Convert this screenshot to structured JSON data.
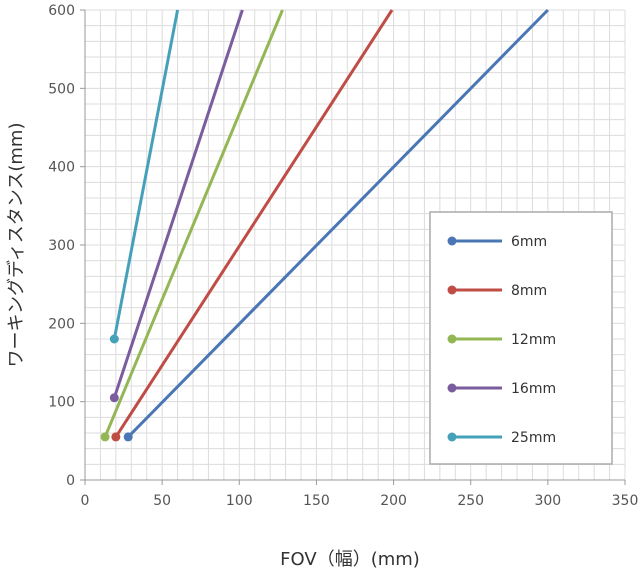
{
  "chart_data": {
    "type": "line",
    "xlabel": "FOV（幅）(mm)",
    "ylabel": "ワーキングディスタンス(mm)",
    "xlim": [
      0,
      350
    ],
    "ylim": [
      0,
      600
    ],
    "x_ticks": [
      0,
      50,
      100,
      150,
      200,
      250,
      300,
      350
    ],
    "y_ticks": [
      0,
      100,
      200,
      300,
      400,
      500,
      600
    ],
    "grid": true,
    "legend": "right",
    "series": [
      {
        "name": "6mm",
        "color": "#4a76b5",
        "x": [
          28,
          300
        ],
        "y": [
          55,
          600
        ]
      },
      {
        "name": "8mm",
        "color": "#bf4c45",
        "x": [
          20,
          199
        ],
        "y": [
          55,
          600
        ]
      },
      {
        "name": "12mm",
        "color": "#94b755",
        "x": [
          13,
          128
        ],
        "y": [
          55,
          600
        ]
      },
      {
        "name": "16mm",
        "color": "#7b5c9e",
        "x": [
          19,
          102
        ],
        "y": [
          105,
          600
        ]
      },
      {
        "name": "25mm",
        "color": "#45a0b9",
        "x": [
          19,
          60
        ],
        "y": [
          180,
          600
        ]
      }
    ]
  }
}
